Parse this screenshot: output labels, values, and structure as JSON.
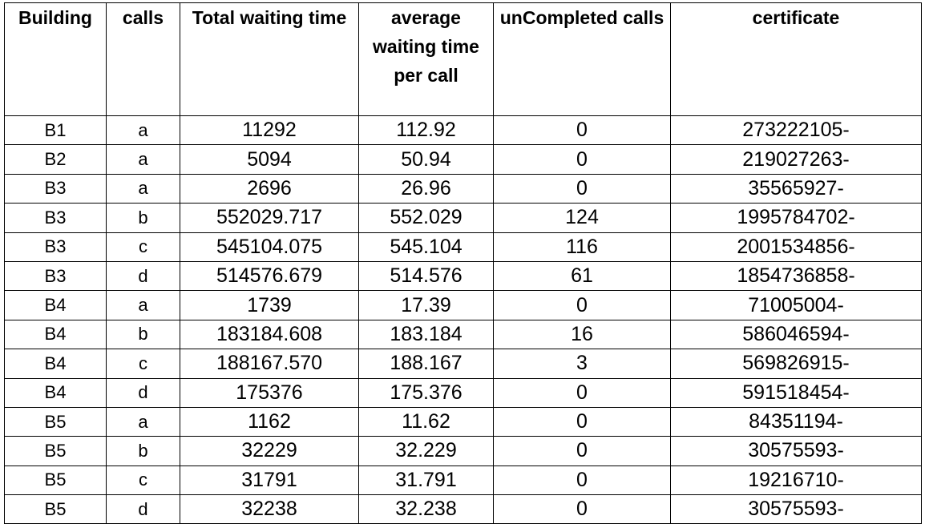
{
  "table": {
    "headers": [
      "Building",
      "calls",
      "Total waiting time",
      "average waiting time per call",
      "unCompleted calls",
      "certificate"
    ],
    "rows": [
      [
        "B1",
        "a",
        "11292",
        "112.92",
        "0",
        "273222105-"
      ],
      [
        "B2",
        "a",
        "5094",
        "50.94",
        "0",
        "219027263-"
      ],
      [
        "B3",
        "a",
        "2696",
        "26.96",
        "0",
        "35565927-"
      ],
      [
        "B3",
        "b",
        "552029.717",
        "552.029",
        "124",
        "1995784702-"
      ],
      [
        "B3",
        "c",
        "545104.075",
        "545.104",
        "116",
        "2001534856-"
      ],
      [
        "B3",
        "d",
        "514576.679",
        "514.576",
        "61",
        "1854736858-"
      ],
      [
        "B4",
        "a",
        "1739",
        "17.39",
        "0",
        "71005004-"
      ],
      [
        "B4",
        "b",
        "183184.608",
        "183.184",
        "16",
        "586046594-"
      ],
      [
        "B4",
        "c",
        "188167.570",
        "188.167",
        "3",
        "569826915-"
      ],
      [
        "B4",
        "d",
        "175376",
        "175.376",
        "0",
        "591518454-"
      ],
      [
        "B5",
        "a",
        "1162",
        "11.62",
        "0",
        "84351194-"
      ],
      [
        "B5",
        "b",
        "32229",
        "32.229",
        "0",
        "30575593-"
      ],
      [
        "B5",
        "c",
        "31791",
        "31.791",
        "0",
        "19216710-"
      ],
      [
        "B5",
        "d",
        "32238",
        "32.238",
        "0",
        "30575593-"
      ]
    ]
  }
}
